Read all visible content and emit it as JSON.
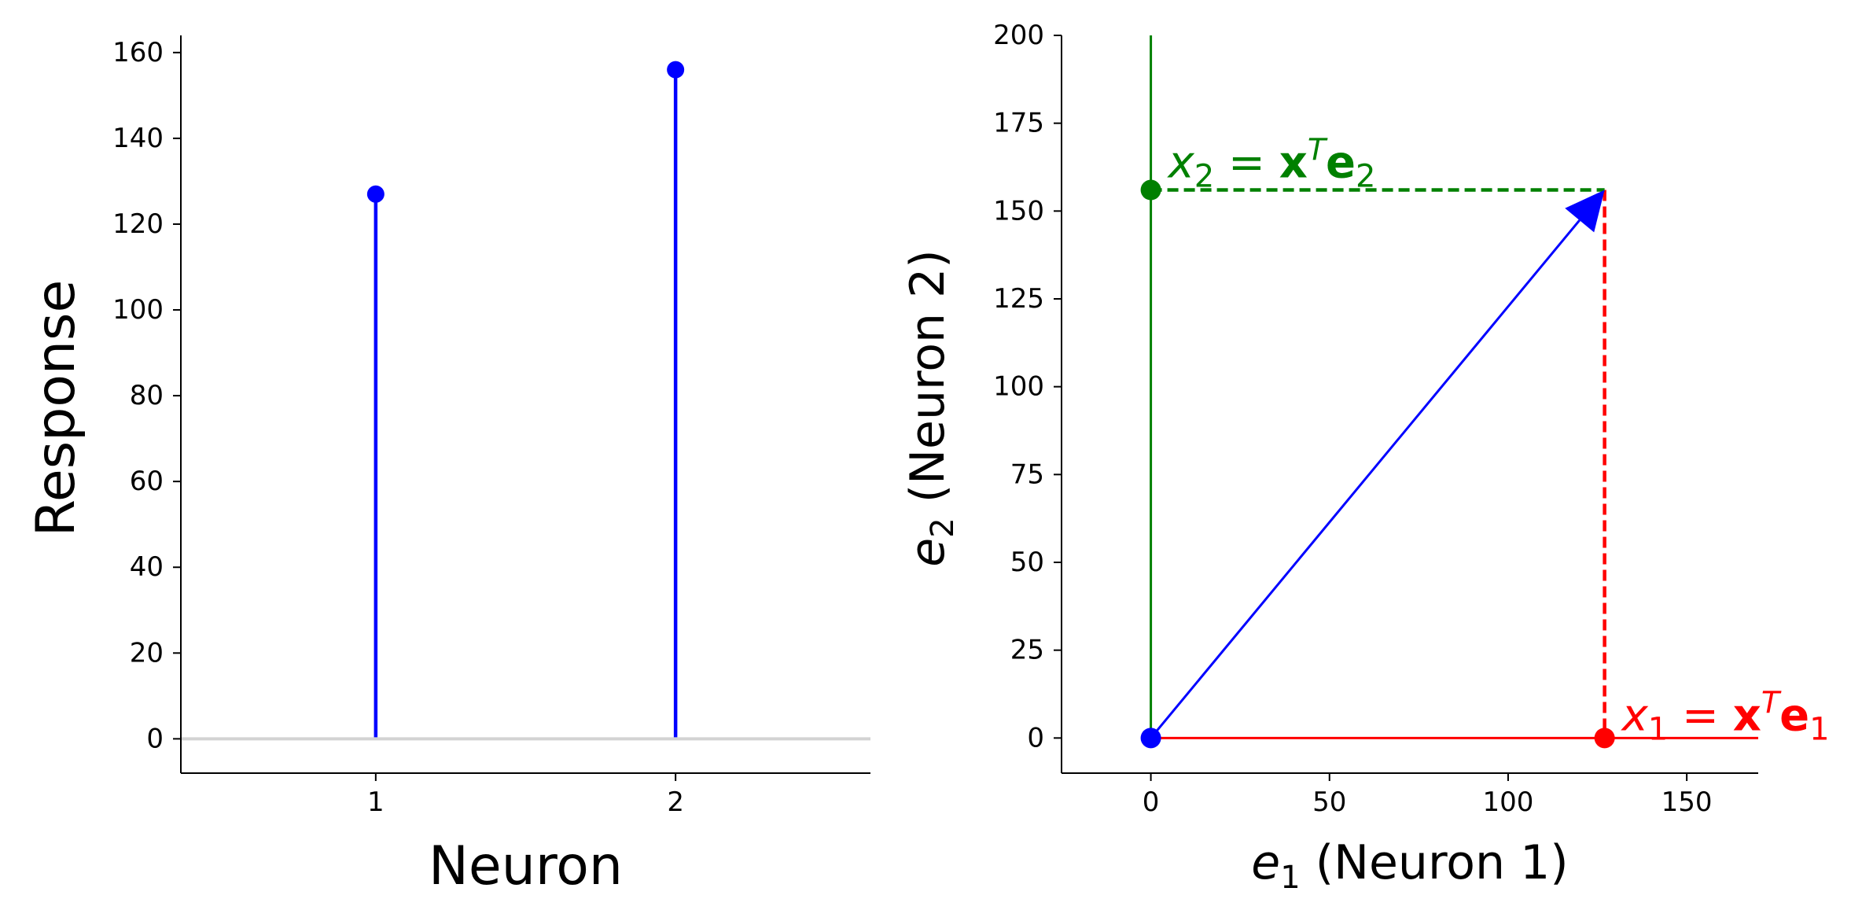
{
  "chart_data": [
    {
      "type": "stem",
      "categories": [
        "1",
        "2"
      ],
      "x": [
        1,
        2
      ],
      "values": [
        127,
        156
      ],
      "xlabel": "Neuron",
      "ylabel": "Response",
      "xlim": [
        0.35,
        2.65
      ],
      "ylim": [
        -8,
        164
      ],
      "xticks": [
        "1",
        "2"
      ],
      "yticks": [
        "0",
        "20",
        "40",
        "60",
        "80",
        "100",
        "120",
        "140",
        "160"
      ],
      "baseline": 0,
      "grid": false,
      "colors": {
        "stem": "#0000ff",
        "baseline": "#d3d3d3",
        "axis": "#000000"
      }
    },
    {
      "type": "vector",
      "xlabel": {
        "symbol": "e",
        "sub": "1",
        "rest": " (Neuron 1)"
      },
      "ylabel": {
        "symbol": "e",
        "sub": "2",
        "rest": " (Neuron 2)"
      },
      "xlim": [
        -25,
        170
      ],
      "ylim": [
        -10,
        200
      ],
      "xticks": [
        "0",
        "50",
        "100",
        "150"
      ],
      "yticks": [
        "0",
        "25",
        "50",
        "75",
        "100",
        "125",
        "150",
        "175",
        "200"
      ],
      "vector": {
        "x": 127,
        "y": 156
      },
      "axes_lines": {
        "e1_end": 170,
        "e2_end": 200
      },
      "annotations": [
        {
          "var": "x",
          "sub": "1",
          "eq": " = ",
          "bold": "x",
          "sup": "T",
          "bold2": "e",
          "sub2": "1",
          "color": "#ff0000"
        },
        {
          "var": "x",
          "sub": "2",
          "eq": " = ",
          "bold": "x",
          "sup": "T",
          "bold2": "e",
          "sub2": "2",
          "color": "#008000"
        }
      ],
      "grid": false,
      "colors": {
        "vector": "#0000ff",
        "e1": "#ff0000",
        "e2": "#008000",
        "axis": "#000000"
      }
    }
  ]
}
